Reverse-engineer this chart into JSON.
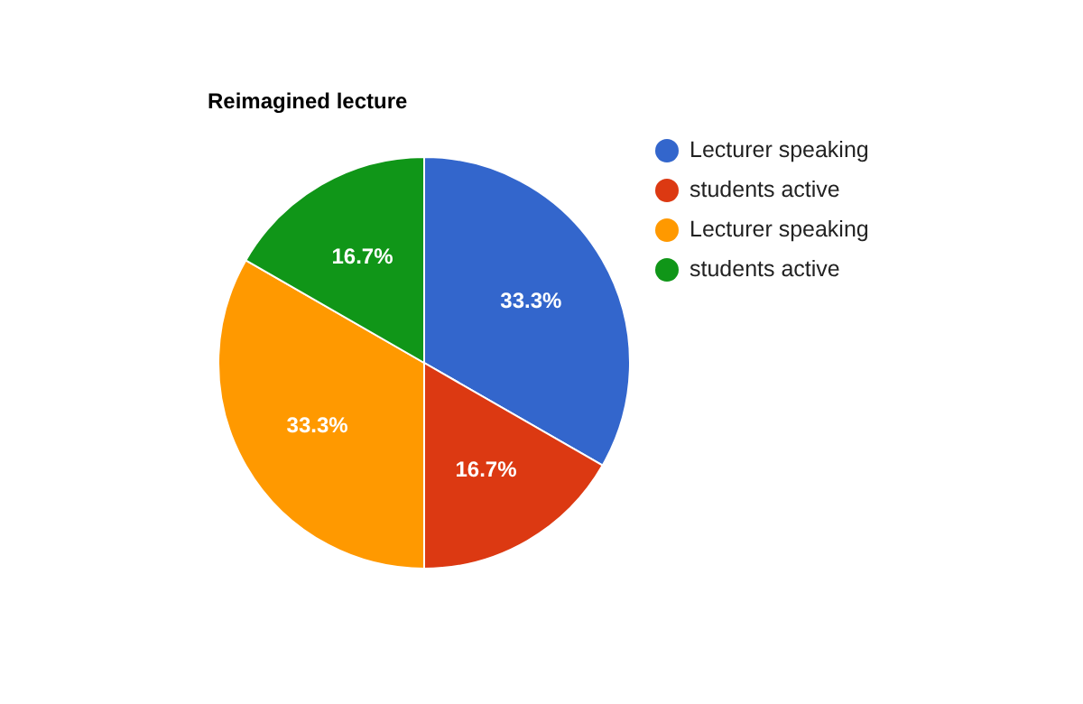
{
  "chart_data": {
    "type": "pie",
    "title": "Reimagined lecture",
    "categories": [
      "Lecturer speaking",
      "students active",
      "Lecturer speaking",
      "students active"
    ],
    "values": [
      33.3,
      16.7,
      33.3,
      16.7
    ],
    "value_labels": [
      "33.3%",
      "16.7%",
      "33.3%",
      "16.7%"
    ],
    "colors": [
      "#3366cc",
      "#dc3912",
      "#ff9900",
      "#109618"
    ],
    "legend": "top right"
  }
}
